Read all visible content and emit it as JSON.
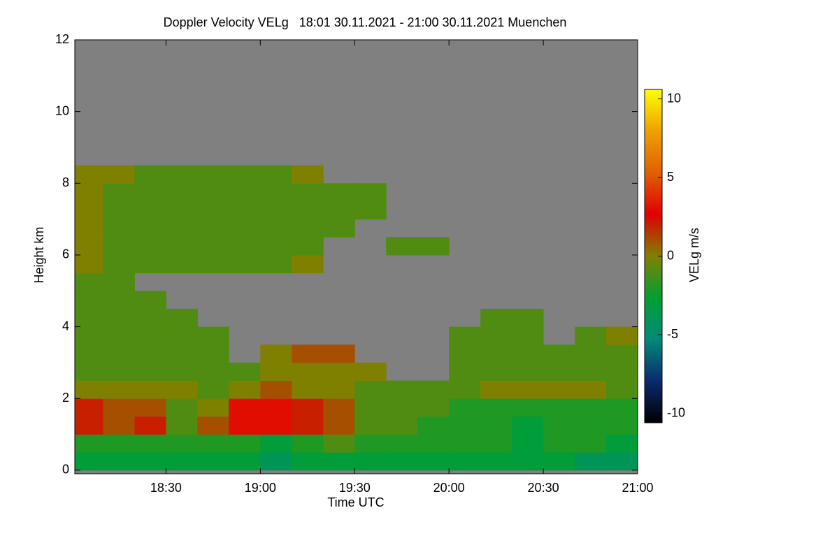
{
  "chart_data": {
    "type": "heatmap",
    "title": "Doppler Velocity VELg   18:01 30.11.2021 - 21:00 30.11.2021 Muenchen",
    "x_label": "Time UTC",
    "y_label": "Height km",
    "xlim": [
      1081,
      1260
    ],
    "xticks": [
      {
        "value": 1110,
        "label": "18:30"
      },
      {
        "value": 1140,
        "label": "19:00"
      },
      {
        "value": 1170,
        "label": "19:30"
      },
      {
        "value": 1200,
        "label": "20:00"
      },
      {
        "value": 1230,
        "label": "20:30"
      },
      {
        "value": 1260,
        "label": "21:00"
      }
    ],
    "ylim": [
      -0.1,
      12
    ],
    "yticks": [
      0,
      2,
      4,
      6,
      8,
      10,
      12
    ],
    "x": [
      1085,
      1095,
      1105,
      1115,
      1125,
      1135,
      1145,
      1155,
      1165,
      1175,
      1185,
      1195,
      1205,
      1215,
      1225,
      1235,
      1245,
      1255
    ],
    "y": [
      0.25,
      0.75,
      1.25,
      1.75,
      2.25,
      2.75,
      3.25,
      3.75,
      4.25,
      4.75,
      5.25,
      5.75,
      6.25,
      6.75,
      7.25,
      7.75,
      8.25,
      8.75,
      9.25,
      9.75,
      10.25,
      10.75,
      11.25,
      11.75
    ],
    "z": [
      [
        -3,
        -3,
        -3,
        -3,
        -3,
        -3,
        -4,
        -3,
        -3,
        -3,
        -3,
        -3,
        -3,
        -3,
        -3,
        -3,
        -4,
        -4
      ],
      [
        -2,
        -2,
        -2,
        -2,
        -2,
        -2,
        -3,
        -2,
        -1,
        -2,
        -2,
        -2,
        -2,
        -2,
        -3,
        -2,
        -2,
        -3
      ],
      [
        2,
        1,
        2,
        -1,
        1,
        3,
        3,
        2,
        1,
        -1,
        -1,
        -2,
        -2,
        -2,
        -3,
        -2,
        -2,
        -2
      ],
      [
        2,
        1,
        1,
        -1,
        0,
        3,
        3,
        2,
        1,
        -1,
        -1,
        -1,
        -2,
        -2,
        -2,
        -2,
        -2,
        -2
      ],
      [
        0,
        0,
        0,
        0,
        -1,
        0,
        1,
        0,
        0,
        -1,
        -1,
        -1,
        -1,
        0,
        0,
        0,
        0,
        -1
      ],
      [
        -1,
        -1,
        -1,
        -1,
        -1,
        -1,
        0,
        0,
        0,
        0,
        null,
        null,
        -1,
        -1,
        -1,
        -1,
        -1,
        -1
      ],
      [
        -1,
        -1,
        -1,
        -1,
        -1,
        null,
        0,
        1,
        1,
        null,
        null,
        null,
        -1,
        -1,
        -1,
        -1,
        -1,
        -1
      ],
      [
        -1,
        -1,
        -1,
        -1,
        -1,
        null,
        null,
        null,
        null,
        null,
        null,
        null,
        -1,
        -1,
        -1,
        null,
        -1,
        0
      ],
      [
        -1,
        -1,
        -1,
        -1,
        null,
        null,
        null,
        null,
        null,
        null,
        null,
        null,
        null,
        -1,
        -1,
        null,
        null,
        null
      ],
      [
        -1,
        -1,
        -1,
        null,
        null,
        null,
        null,
        null,
        null,
        null,
        null,
        null,
        null,
        null,
        null,
        null,
        null,
        null
      ],
      [
        -1,
        -1,
        null,
        null,
        null,
        null,
        null,
        null,
        null,
        null,
        null,
        null,
        null,
        null,
        null,
        null,
        null,
        null
      ],
      [
        0,
        -1,
        -1,
        -1,
        -1,
        -1,
        -1,
        0,
        null,
        null,
        null,
        null,
        null,
        null,
        null,
        null,
        null,
        null
      ],
      [
        0,
        -1,
        -1,
        -1,
        -1,
        -1,
        -1,
        -1,
        null,
        null,
        -1,
        -1,
        null,
        null,
        null,
        null,
        null,
        null
      ],
      [
        0,
        -1,
        -1,
        -1,
        -1,
        -1,
        -1,
        -1,
        -1,
        null,
        null,
        null,
        null,
        null,
        null,
        null,
        null,
        null
      ],
      [
        0,
        -1,
        -1,
        -1,
        -1,
        -1,
        -1,
        -1,
        -1,
        -1,
        null,
        null,
        null,
        null,
        null,
        null,
        null,
        null
      ],
      [
        0,
        -1,
        -1,
        -1,
        -1,
        -1,
        -1,
        -1,
        -1,
        -1,
        null,
        null,
        null,
        null,
        null,
        null,
        null,
        null
      ],
      [
        0,
        0,
        -1,
        -1,
        -1,
        -1,
        -1,
        0,
        null,
        null,
        null,
        null,
        null,
        null,
        null,
        null,
        null,
        null
      ],
      [
        null,
        null,
        null,
        null,
        null,
        null,
        null,
        null,
        null,
        null,
        null,
        null,
        null,
        null,
        null,
        null,
        null,
        null
      ],
      [
        null,
        null,
        null,
        null,
        null,
        null,
        null,
        null,
        null,
        null,
        null,
        null,
        null,
        null,
        null,
        null,
        null,
        null
      ],
      [
        null,
        null,
        null,
        null,
        null,
        null,
        null,
        null,
        null,
        null,
        null,
        null,
        null,
        null,
        null,
        null,
        null,
        null
      ],
      [
        null,
        null,
        null,
        null,
        null,
        null,
        null,
        null,
        null,
        null,
        null,
        null,
        null,
        null,
        null,
        null,
        null,
        null
      ],
      [
        null,
        null,
        null,
        null,
        null,
        null,
        null,
        null,
        null,
        null,
        null,
        null,
        null,
        null,
        null,
        null,
        null,
        null
      ],
      [
        null,
        null,
        null,
        null,
        null,
        null,
        null,
        null,
        null,
        null,
        null,
        null,
        null,
        null,
        null,
        null,
        null,
        null
      ],
      [
        null,
        null,
        null,
        null,
        null,
        null,
        null,
        null,
        null,
        null,
        null,
        null,
        null,
        null,
        null,
        null,
        null,
        null
      ]
    ],
    "colorbar": {
      "label": "VELg m/s",
      "clim": [
        -10.6,
        10.6
      ],
      "ticks": [
        -10,
        -5,
        0,
        5,
        10
      ],
      "colors": [
        "#000000",
        "#0a2a6e",
        "#008a7a",
        "#00a030",
        "#808000",
        "#e00000",
        "#e06000",
        "#f0a000",
        "#ffff00"
      ]
    }
  }
}
